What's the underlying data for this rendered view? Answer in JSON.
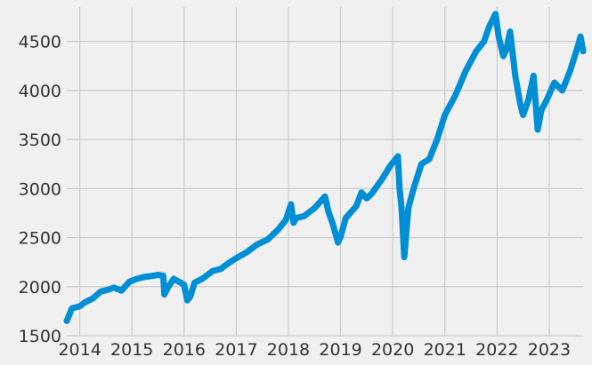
{
  "chart_data": {
    "type": "line",
    "title": "",
    "xlabel": "",
    "ylabel": "",
    "xlim": [
      2013.75,
      2023.65
    ],
    "ylim": [
      1500,
      4850
    ],
    "grid": true,
    "legend": "none",
    "colors": {
      "background": "#f0f0f0",
      "grid": "#cbcbcb",
      "line": "#008fd5",
      "text": "#333333"
    },
    "x_ticks": [
      {
        "value": 2014,
        "label": "2014"
      },
      {
        "value": 2015,
        "label": "2015"
      },
      {
        "value": 2016,
        "label": "2016"
      },
      {
        "value": 2017,
        "label": "2017"
      },
      {
        "value": 2018,
        "label": "2018"
      },
      {
        "value": 2019,
        "label": "2019"
      },
      {
        "value": 2020,
        "label": "2020"
      },
      {
        "value": 2021,
        "label": "2021"
      },
      {
        "value": 2022,
        "label": "2022"
      },
      {
        "value": 2023,
        "label": "2023"
      }
    ],
    "y_ticks": [
      {
        "value": 1500,
        "label": "1500"
      },
      {
        "value": 2000,
        "label": "2000"
      },
      {
        "value": 2500,
        "label": "2500"
      },
      {
        "value": 3000,
        "label": "3000"
      },
      {
        "value": 3500,
        "label": "3500"
      },
      {
        "value": 4000,
        "label": "4000"
      },
      {
        "value": 4500,
        "label": "4500"
      }
    ],
    "series": [
      {
        "x": [
          2013.75,
          2013.85,
          2014.0,
          2014.1,
          2014.25,
          2014.4,
          2014.55,
          2014.65,
          2014.8,
          2014.95,
          2015.1,
          2015.25,
          2015.4,
          2015.5,
          2015.6,
          2015.62,
          2015.7,
          2015.8,
          2015.9,
          2016.0,
          2016.06,
          2016.12,
          2016.2,
          2016.35,
          2016.45,
          2016.55,
          2016.7,
          2016.85,
          2017.0,
          2017.2,
          2017.4,
          2017.6,
          2017.8,
          2017.95,
          2018.05,
          2018.1,
          2018.15,
          2018.3,
          2018.5,
          2018.7,
          2018.77,
          2018.85,
          2018.95,
          2019.0,
          2019.1,
          2019.3,
          2019.4,
          2019.5,
          2019.6,
          2019.8,
          2019.95,
          2020.1,
          2020.13,
          2020.17,
          2020.22,
          2020.3,
          2020.4,
          2020.55,
          2020.7,
          2020.85,
          2021.0,
          2021.2,
          2021.4,
          2021.6,
          2021.75,
          2021.85,
          2021.97,
          2022.03,
          2022.12,
          2022.18,
          2022.25,
          2022.35,
          2022.45,
          2022.5,
          2022.6,
          2022.7,
          2022.78,
          2022.85,
          2022.95,
          2023.1,
          2023.25,
          2023.4,
          2023.55,
          2023.6,
          2023.65
        ],
        "values": [
          1650,
          1780,
          1800,
          1840,
          1880,
          1950,
          1970,
          1990,
          1960,
          2050,
          2080,
          2100,
          2110,
          2120,
          2110,
          1920,
          2000,
          2080,
          2050,
          2020,
          1860,
          1900,
          2040,
          2080,
          2120,
          2160,
          2180,
          2240,
          2290,
          2350,
          2430,
          2480,
          2580,
          2680,
          2840,
          2650,
          2700,
          2720,
          2800,
          2920,
          2760,
          2640,
          2450,
          2510,
          2700,
          2820,
          2960,
          2900,
          2950,
          3100,
          3230,
          3330,
          3000,
          2800,
          2300,
          2800,
          3000,
          3250,
          3300,
          3500,
          3750,
          3950,
          4200,
          4400,
          4500,
          4650,
          4780,
          4550,
          4350,
          4420,
          4600,
          4150,
          3850,
          3750,
          3900,
          4150,
          3600,
          3800,
          3900,
          4080,
          4000,
          4200,
          4450,
          4550,
          4400
        ]
      }
    ]
  }
}
